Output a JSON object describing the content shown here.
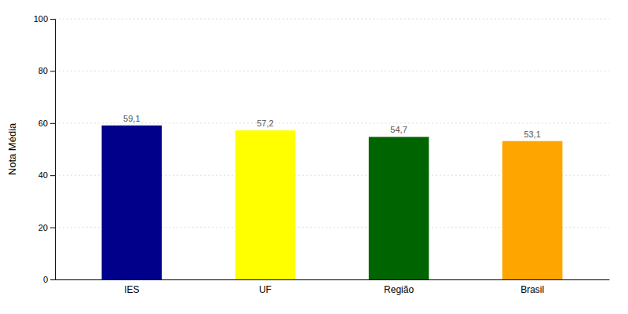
{
  "chart_data": {
    "type": "bar",
    "categories": [
      "IES",
      "UF",
      "Região",
      "Brasil"
    ],
    "values": [
      59.1,
      57.2,
      54.7,
      53.1
    ],
    "value_labels": [
      "59,1",
      "57,2",
      "54,7",
      "53,1"
    ],
    "colors": [
      "#00008B",
      "#FFFF00",
      "#006400",
      "#FFA500"
    ],
    "ylabel": "Nota Média",
    "ylim": [
      0,
      100
    ],
    "yticks": [
      0,
      20,
      40,
      60,
      80,
      100
    ],
    "grid": true,
    "data_labels": true
  }
}
